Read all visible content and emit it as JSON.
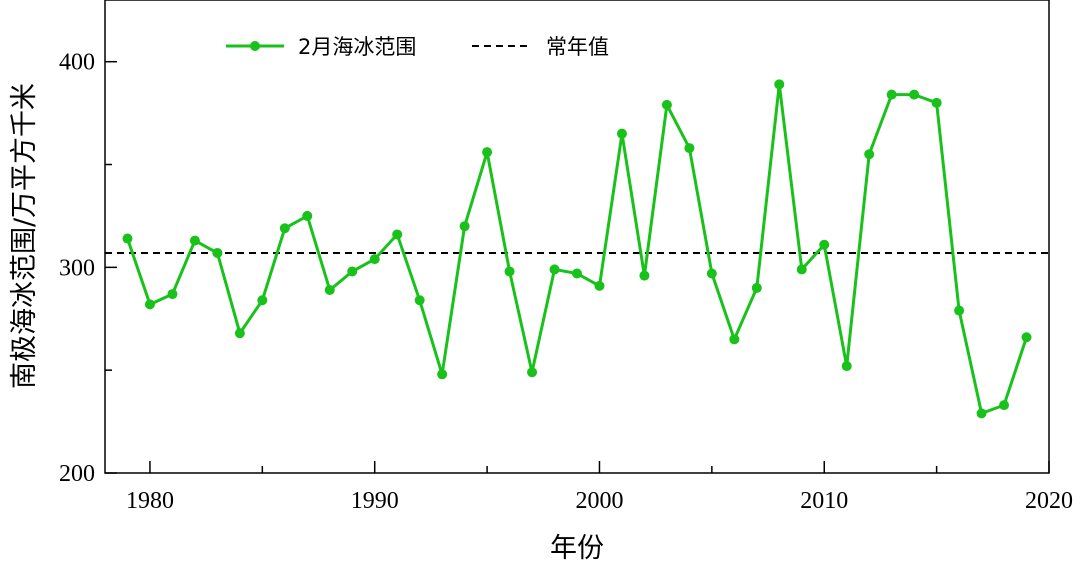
{
  "chart_data": {
    "type": "line",
    "xlabel": "年份",
    "ylabel": "南极海冰范围/万平方千米",
    "xlim": [
      1978,
      2020
    ],
    "ylim": [
      200,
      430
    ],
    "xticks": [
      1980,
      1990,
      2000,
      2010,
      2020
    ],
    "yticks": [
      200,
      300,
      400
    ],
    "grid": false,
    "legend_position": "top-left",
    "x": [
      1979,
      1980,
      1981,
      1982,
      1983,
      1984,
      1985,
      1986,
      1987,
      1988,
      1989,
      1990,
      1991,
      1992,
      1993,
      1994,
      1995,
      1996,
      1997,
      1998,
      1999,
      2000,
      2001,
      2002,
      2003,
      2004,
      2005,
      2006,
      2007,
      2008,
      2009,
      2010,
      2011,
      2012,
      2013,
      2014,
      2015,
      2016,
      2017,
      2018,
      2019
    ],
    "series": [
      {
        "name": "2月海冰范围",
        "color": "#19c21a",
        "marker": "circle",
        "values": [
          314,
          282,
          287,
          313,
          307,
          268,
          284,
          319,
          325,
          289,
          298,
          304,
          316,
          284,
          248,
          320,
          356,
          298,
          249,
          299,
          297,
          291,
          365,
          296,
          379,
          358,
          297,
          265,
          290,
          389,
          299,
          311,
          252,
          355,
          384,
          384,
          380,
          279,
          229,
          233,
          266
        ]
      },
      {
        "name": "常年值",
        "color": "#000000",
        "style": "dashed",
        "constant": 307
      }
    ]
  }
}
